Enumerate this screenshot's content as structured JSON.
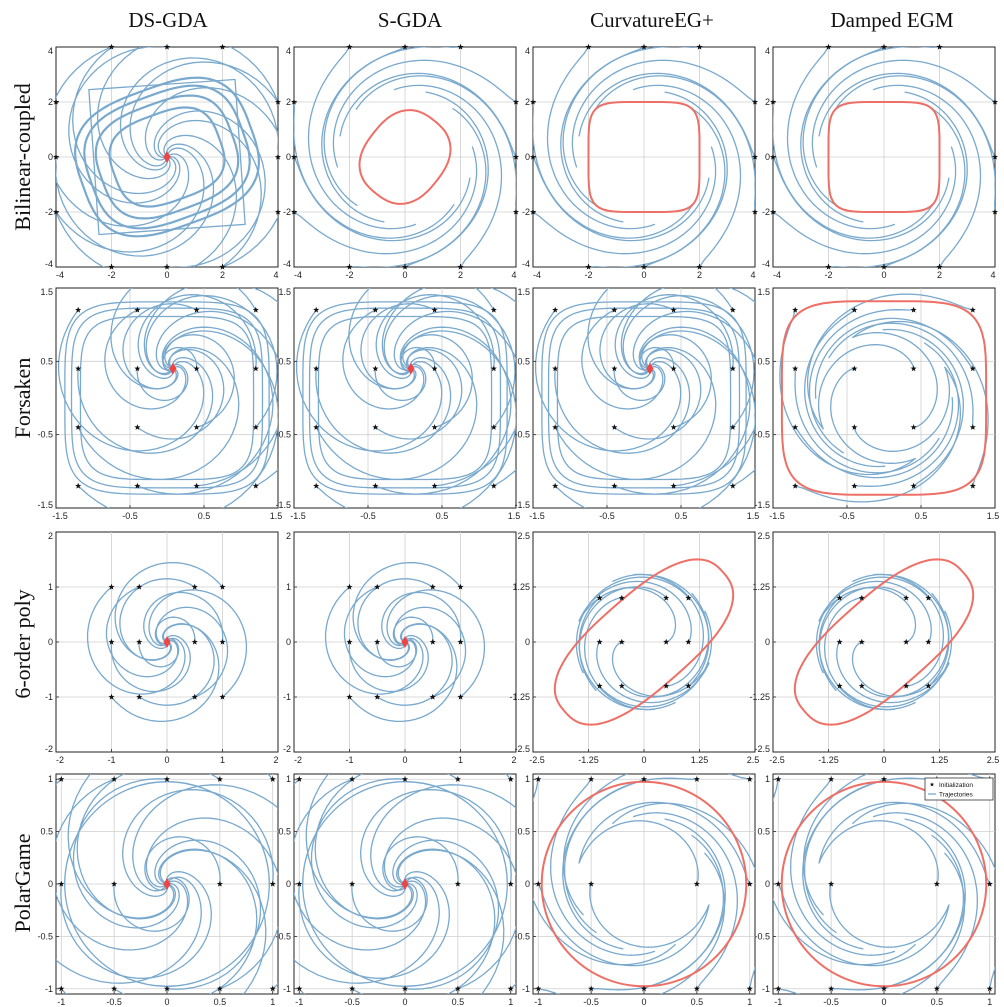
{
  "columns": [
    "DS-GDA",
    "S-GDA",
    "CurvatureEG+",
    "Damped EGM"
  ],
  "rows": [
    "Bilinear-coupled",
    "Forsaken",
    "6-order poly",
    "PolarGame"
  ],
  "legend": {
    "entries": [
      "Initialization",
      "Trajectories"
    ]
  },
  "colors": {
    "trajectory": "#79a9cd",
    "limit_cycle": "#ee6f65",
    "stationary_point": "#ee4444",
    "init_marker": "#111111"
  },
  "chart_data": [
    {
      "type": "line",
      "row": "Bilinear-coupled",
      "column": "DS-GDA",
      "xlim": [
        -4,
        4
      ],
      "ylim": [
        -4,
        4
      ],
      "xticks": [
        "-4",
        "-2",
        "0",
        "2",
        "4"
      ],
      "yticks": [
        "-4",
        "-2",
        "0",
        "2",
        "4"
      ],
      "grid": true,
      "converged_point": [
        0,
        0
      ],
      "limit_cycle": false,
      "initializations": [
        [
          -2,
          4
        ],
        [
          0,
          4
        ],
        [
          2,
          4
        ],
        [
          -4,
          2
        ],
        [
          4,
          2
        ],
        [
          -4,
          0
        ],
        [
          4,
          0
        ],
        [
          -4,
          -2
        ],
        [
          4,
          -2
        ],
        [
          -2,
          -4
        ],
        [
          0,
          -4
        ],
        [
          2,
          -4
        ]
      ]
    },
    {
      "type": "line",
      "row": "Bilinear-coupled",
      "column": "S-GDA",
      "xlim": [
        -4,
        4
      ],
      "ylim": [
        -4,
        4
      ],
      "xticks": [
        "-4",
        "-2",
        "0",
        "2",
        "4"
      ],
      "yticks": [
        "-4",
        "-2",
        "0",
        "2",
        "4"
      ],
      "grid": true,
      "converged_point": null,
      "limit_cycle": true,
      "initializations": [
        [
          -2,
          4
        ],
        [
          0,
          4
        ],
        [
          2,
          4
        ],
        [
          -4,
          2
        ],
        [
          4,
          2
        ],
        [
          -4,
          0
        ],
        [
          4,
          0
        ],
        [
          -4,
          -2
        ],
        [
          4,
          -2
        ],
        [
          -2,
          -4
        ],
        [
          0,
          -4
        ],
        [
          2,
          -4
        ]
      ]
    },
    {
      "type": "line",
      "row": "Bilinear-coupled",
      "column": "CurvatureEG+",
      "xlim": [
        -4,
        4
      ],
      "ylim": [
        -4,
        4
      ],
      "xticks": [
        "-4",
        "-2",
        "0",
        "2",
        "4"
      ],
      "yticks": [
        "-4",
        "-2",
        "0",
        "2",
        "4"
      ],
      "grid": true,
      "converged_point": null,
      "limit_cycle": true,
      "initializations": [
        [
          -2,
          4
        ],
        [
          0,
          4
        ],
        [
          2,
          4
        ],
        [
          -4,
          2
        ],
        [
          4,
          2
        ],
        [
          -4,
          0
        ],
        [
          4,
          0
        ],
        [
          -4,
          -2
        ],
        [
          4,
          -2
        ],
        [
          -2,
          -4
        ],
        [
          0,
          -4
        ],
        [
          2,
          -4
        ]
      ]
    },
    {
      "type": "line",
      "row": "Bilinear-coupled",
      "column": "Damped EGM",
      "xlim": [
        -4,
        4
      ],
      "ylim": [
        -4,
        4
      ],
      "xticks": [
        "-4",
        "-2",
        "0",
        "2",
        "4"
      ],
      "yticks": [
        "-4",
        "-2",
        "0",
        "2",
        "4"
      ],
      "grid": true,
      "converged_point": null,
      "limit_cycle": true,
      "initializations": [
        [
          -2,
          4
        ],
        [
          0,
          4
        ],
        [
          2,
          4
        ],
        [
          -4,
          2
        ],
        [
          4,
          2
        ],
        [
          -4,
          0
        ],
        [
          4,
          0
        ],
        [
          -4,
          -2
        ],
        [
          4,
          -2
        ],
        [
          -2,
          -4
        ],
        [
          0,
          -4
        ],
        [
          2,
          -4
        ]
      ]
    },
    {
      "type": "line",
      "row": "Forsaken",
      "column": "DS-GDA",
      "xlim": [
        -1.5,
        1.5
      ],
      "ylim": [
        -1.5,
        1.5
      ],
      "xticks": [
        "-1.5",
        "-0.5",
        "0.5",
        "1.5"
      ],
      "yticks": [
        "-1.5",
        "-0.5",
        "0.5",
        "1.5"
      ],
      "grid": true,
      "converged_point": [
        0.08,
        0.4
      ],
      "limit_cycle": false,
      "initializations": [
        [
          -1.2,
          1.2
        ],
        [
          -0.4,
          1.2
        ],
        [
          0.4,
          1.2
        ],
        [
          1.2,
          1.2
        ],
        [
          -1.2,
          0.4
        ],
        [
          -0.4,
          0.4
        ],
        [
          0.4,
          0.4
        ],
        [
          1.2,
          0.4
        ],
        [
          -1.2,
          -0.4
        ],
        [
          -0.4,
          -0.4
        ],
        [
          0.4,
          -0.4
        ],
        [
          1.2,
          -0.4
        ],
        [
          -1.2,
          -1.2
        ],
        [
          -0.4,
          -1.2
        ],
        [
          0.4,
          -1.2
        ],
        [
          1.2,
          -1.2
        ]
      ]
    },
    {
      "type": "line",
      "row": "Forsaken",
      "column": "S-GDA",
      "xlim": [
        -1.5,
        1.5
      ],
      "ylim": [
        -1.5,
        1.5
      ],
      "xticks": [
        "-1.5",
        "-0.5",
        "0.5",
        "1.5"
      ],
      "yticks": [
        "-1.5",
        "-0.5",
        "0.5",
        "1.5"
      ],
      "grid": true,
      "converged_point": [
        0.08,
        0.4
      ],
      "limit_cycle": false,
      "initializations": [
        [
          -1.2,
          1.2
        ],
        [
          -0.4,
          1.2
        ],
        [
          0.4,
          1.2
        ],
        [
          1.2,
          1.2
        ],
        [
          -1.2,
          0.4
        ],
        [
          -0.4,
          0.4
        ],
        [
          0.4,
          0.4
        ],
        [
          1.2,
          0.4
        ],
        [
          -1.2,
          -0.4
        ],
        [
          -0.4,
          -0.4
        ],
        [
          0.4,
          -0.4
        ],
        [
          1.2,
          -0.4
        ],
        [
          -1.2,
          -1.2
        ],
        [
          -0.4,
          -1.2
        ],
        [
          0.4,
          -1.2
        ],
        [
          1.2,
          -1.2
        ]
      ]
    },
    {
      "type": "line",
      "row": "Forsaken",
      "column": "CurvatureEG+",
      "xlim": [
        -1.5,
        1.5
      ],
      "ylim": [
        -1.5,
        1.5
      ],
      "xticks": [
        "-1.5",
        "-0.5",
        "0.5",
        "1.5"
      ],
      "yticks": [
        "-1.5",
        "-0.5",
        "0.5",
        "1.5"
      ],
      "grid": true,
      "converged_point": [
        0.08,
        0.4
      ],
      "limit_cycle": false,
      "initializations": [
        [
          -1.2,
          1.2
        ],
        [
          -0.4,
          1.2
        ],
        [
          0.4,
          1.2
        ],
        [
          1.2,
          1.2
        ],
        [
          -1.2,
          0.4
        ],
        [
          -0.4,
          0.4
        ],
        [
          0.4,
          0.4
        ],
        [
          1.2,
          0.4
        ],
        [
          -1.2,
          -0.4
        ],
        [
          -0.4,
          -0.4
        ],
        [
          0.4,
          -0.4
        ],
        [
          1.2,
          -0.4
        ],
        [
          -1.2,
          -1.2
        ],
        [
          -0.4,
          -1.2
        ],
        [
          0.4,
          -1.2
        ],
        [
          1.2,
          -1.2
        ]
      ]
    },
    {
      "type": "line",
      "row": "Forsaken",
      "column": "Damped EGM",
      "xlim": [
        -1.5,
        1.5
      ],
      "ylim": [
        -1.5,
        1.5
      ],
      "xticks": [
        "-1.5",
        "-0.5",
        "0.5",
        "1.5"
      ],
      "yticks": [
        "-1.5",
        "-0.5",
        "0.5",
        "1.5"
      ],
      "grid": true,
      "converged_point": null,
      "limit_cycle": true,
      "initializations": [
        [
          -1.2,
          1.2
        ],
        [
          -0.4,
          1.2
        ],
        [
          0.4,
          1.2
        ],
        [
          1.2,
          1.2
        ],
        [
          -1.2,
          0.4
        ],
        [
          -0.4,
          0.4
        ],
        [
          0.4,
          0.4
        ],
        [
          1.2,
          0.4
        ],
        [
          -1.2,
          -0.4
        ],
        [
          -0.4,
          -0.4
        ],
        [
          0.4,
          -0.4
        ],
        [
          1.2,
          -0.4
        ],
        [
          -1.2,
          -1.2
        ],
        [
          -0.4,
          -1.2
        ],
        [
          0.4,
          -1.2
        ],
        [
          1.2,
          -1.2
        ]
      ]
    },
    {
      "type": "line",
      "row": "6-order poly",
      "column": "DS-GDA",
      "xlim": [
        -2,
        2
      ],
      "ylim": [
        -2,
        2
      ],
      "xticks": [
        "-2",
        "-1",
        "0",
        "1",
        "2"
      ],
      "yticks": [
        "-2",
        "-1",
        "0",
        "1",
        "2"
      ],
      "grid": true,
      "converged_point": [
        0,
        0
      ],
      "limit_cycle": false,
      "initializations": [
        [
          -1,
          1
        ],
        [
          -0.5,
          1
        ],
        [
          0.5,
          1
        ],
        [
          1,
          1
        ],
        [
          -1,
          0
        ],
        [
          -0.5,
          0
        ],
        [
          0.5,
          0
        ],
        [
          1,
          0
        ],
        [
          -1,
          -1
        ],
        [
          -0.5,
          -1
        ],
        [
          0.5,
          -1
        ],
        [
          1,
          -1
        ]
      ]
    },
    {
      "type": "line",
      "row": "6-order poly",
      "column": "S-GDA",
      "xlim": [
        -2,
        2
      ],
      "ylim": [
        -2,
        2
      ],
      "xticks": [
        "-2",
        "-1",
        "0",
        "1",
        "2"
      ],
      "yticks": [
        "-2",
        "-1",
        "0",
        "1",
        "2"
      ],
      "grid": true,
      "converged_point": [
        0,
        0
      ],
      "limit_cycle": false,
      "initializations": [
        [
          -1,
          1
        ],
        [
          -0.5,
          1
        ],
        [
          0.5,
          1
        ],
        [
          1,
          1
        ],
        [
          -1,
          0
        ],
        [
          -0.5,
          0
        ],
        [
          0.5,
          0
        ],
        [
          1,
          0
        ],
        [
          -1,
          -1
        ],
        [
          -0.5,
          -1
        ],
        [
          0.5,
          -1
        ],
        [
          1,
          -1
        ]
      ]
    },
    {
      "type": "line",
      "row": "6-order poly",
      "column": "CurvatureEG+",
      "xlim": [
        -2.5,
        2.5
      ],
      "ylim": [
        -2.5,
        2.5
      ],
      "xticks": [
        "-2.5",
        "-1.25",
        "0",
        "1.25",
        "2.5"
      ],
      "yticks": [
        "-2.5",
        "-1.25",
        "0",
        "1.25",
        "2.5"
      ],
      "grid": true,
      "converged_point": null,
      "limit_cycle": true,
      "initializations": [
        [
          -1,
          1
        ],
        [
          -0.5,
          1
        ],
        [
          0.5,
          1
        ],
        [
          1,
          1
        ],
        [
          -1,
          0
        ],
        [
          -0.5,
          0
        ],
        [
          0.5,
          0
        ],
        [
          1,
          0
        ],
        [
          -1,
          -1
        ],
        [
          -0.5,
          -1
        ],
        [
          0.5,
          -1
        ],
        [
          1,
          -1
        ]
      ]
    },
    {
      "type": "line",
      "row": "6-order poly",
      "column": "Damped EGM",
      "xlim": [
        -2.5,
        2.5
      ],
      "ylim": [
        -2.5,
        2.5
      ],
      "xticks": [
        "-2.5",
        "-1.25",
        "0",
        "1.25",
        "2.5"
      ],
      "yticks": [
        "-2.5",
        "-1.25",
        "0",
        "1.25",
        "2.5"
      ],
      "grid": true,
      "converged_point": null,
      "limit_cycle": true,
      "initializations": [
        [
          -1,
          1
        ],
        [
          -0.5,
          1
        ],
        [
          0.5,
          1
        ],
        [
          1,
          1
        ],
        [
          -1,
          0
        ],
        [
          -0.5,
          0
        ],
        [
          0.5,
          0
        ],
        [
          1,
          0
        ],
        [
          -1,
          -1
        ],
        [
          -0.5,
          -1
        ],
        [
          0.5,
          -1
        ],
        [
          1,
          -1
        ]
      ]
    },
    {
      "type": "line",
      "row": "PolarGame",
      "column": "DS-GDA",
      "xlim": [
        -1.05,
        1.05
      ],
      "ylim": [
        -1.05,
        1.05
      ],
      "xticks": [
        "-1",
        "-0.5",
        "0",
        "0.5",
        "1"
      ],
      "yticks": [
        "-1",
        "-0.5",
        "0",
        "0.5",
        "1"
      ],
      "grid": true,
      "converged_point": [
        0,
        0
      ],
      "limit_cycle": false,
      "initializations": [
        [
          -1,
          1
        ],
        [
          -0.5,
          1
        ],
        [
          0,
          1
        ],
        [
          0.5,
          1
        ],
        [
          1,
          1
        ],
        [
          -1,
          0
        ],
        [
          -0.5,
          0
        ],
        [
          0.5,
          0
        ],
        [
          1,
          0
        ],
        [
          -1,
          -1
        ],
        [
          -0.5,
          -1
        ],
        [
          0,
          -1
        ],
        [
          0.5,
          -1
        ],
        [
          1,
          -1
        ]
      ]
    },
    {
      "type": "line",
      "row": "PolarGame",
      "column": "S-GDA",
      "xlim": [
        -1.05,
        1.05
      ],
      "ylim": [
        -1.05,
        1.05
      ],
      "xticks": [
        "-1",
        "-0.5",
        "0",
        "0.5",
        "1"
      ],
      "yticks": [
        "-1",
        "-0.5",
        "0",
        "0.5",
        "1"
      ],
      "grid": true,
      "converged_point": [
        0,
        0
      ],
      "limit_cycle": false,
      "initializations": [
        [
          -1,
          1
        ],
        [
          -0.5,
          1
        ],
        [
          0,
          1
        ],
        [
          0.5,
          1
        ],
        [
          1,
          1
        ],
        [
          -1,
          0
        ],
        [
          -0.5,
          0
        ],
        [
          0.5,
          0
        ],
        [
          1,
          0
        ],
        [
          -1,
          -1
        ],
        [
          -0.5,
          -1
        ],
        [
          0,
          -1
        ],
        [
          0.5,
          -1
        ],
        [
          1,
          -1
        ]
      ]
    },
    {
      "type": "line",
      "row": "PolarGame",
      "column": "CurvatureEG+",
      "xlim": [
        -1.05,
        1.05
      ],
      "ylim": [
        -1.05,
        1.05
      ],
      "xticks": [
        "-1",
        "-0.5",
        "0",
        "0.5",
        "1"
      ],
      "yticks": [
        "-1",
        "-0.5",
        "0",
        "0.5",
        "1"
      ],
      "grid": true,
      "converged_point": null,
      "limit_cycle": true,
      "initializations": [
        [
          -1,
          1
        ],
        [
          -0.5,
          1
        ],
        [
          0,
          1
        ],
        [
          0.5,
          1
        ],
        [
          1,
          1
        ],
        [
          -1,
          0
        ],
        [
          -0.5,
          0
        ],
        [
          0.5,
          0
        ],
        [
          1,
          0
        ],
        [
          -1,
          -1
        ],
        [
          -0.5,
          -1
        ],
        [
          0,
          -1
        ],
        [
          0.5,
          -1
        ],
        [
          1,
          -1
        ]
      ]
    },
    {
      "type": "line",
      "row": "PolarGame",
      "column": "Damped EGM",
      "xlim": [
        -1.05,
        1.05
      ],
      "ylim": [
        -1.05,
        1.05
      ],
      "xticks": [
        "-1",
        "-0.5",
        "0",
        "0.5",
        "1"
      ],
      "yticks": [
        "-1",
        "-0.5",
        "0",
        "0.5",
        "1"
      ],
      "grid": true,
      "converged_point": null,
      "limit_cycle": true,
      "legend_placement": "top-right",
      "initializations": [
        [
          -1,
          1
        ],
        [
          -0.5,
          1
        ],
        [
          0,
          1
        ],
        [
          0.5,
          1
        ],
        [
          1,
          1
        ],
        [
          -1,
          0
        ],
        [
          -0.5,
          0
        ],
        [
          0.5,
          0
        ],
        [
          1,
          0
        ],
        [
          -1,
          -1
        ],
        [
          -0.5,
          -1
        ],
        [
          0,
          -1
        ],
        [
          0.5,
          -1
        ],
        [
          1,
          -1
        ]
      ]
    }
  ]
}
